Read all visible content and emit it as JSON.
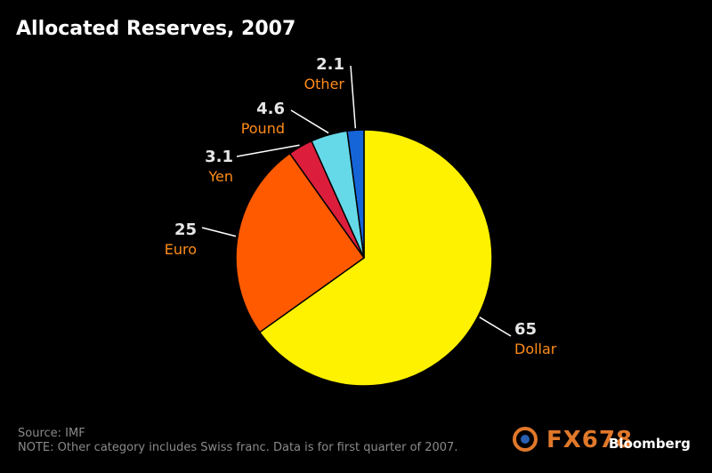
{
  "header": {
    "title": "Allocated Reserves, 2007"
  },
  "chart_data": {
    "type": "pie",
    "title": "Allocated Reserves, 2007",
    "slices": [
      {
        "label": "Dollar",
        "value": 65,
        "value_label": "65",
        "color": "#fff200"
      },
      {
        "label": "Euro",
        "value": 25,
        "value_label": "25",
        "color": "#ff5a00"
      },
      {
        "label": "Yen",
        "value": 3.1,
        "value_label": "3.1",
        "color": "#dc1e3c"
      },
      {
        "label": "Pound",
        "value": 4.6,
        "value_label": "4.6",
        "color": "#66d9e8"
      },
      {
        "label": "Other",
        "value": 2.1,
        "value_label": "2.1",
        "color": "#1565d8"
      }
    ],
    "label_color": "#ff8c1a",
    "value_color": "#e6e6e6"
  },
  "footer": {
    "source": "Source: IMF",
    "note": "NOTE: Other category includes Swiss franc. Data is for first quarter of 2007."
  },
  "watermark": {
    "brand": "Bloomberg",
    "site": "FX678"
  }
}
